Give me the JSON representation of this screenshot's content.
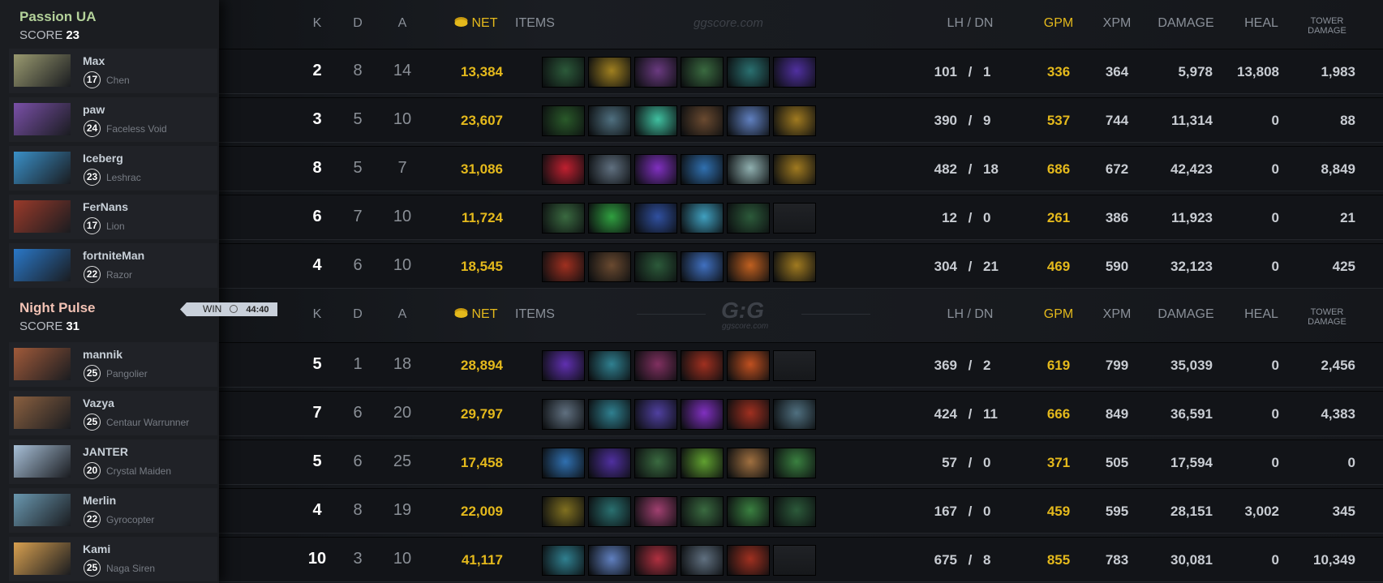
{
  "colors": {
    "gold": "#e4b91c",
    "team1": "#b4d29a",
    "team2": "#f2c2b4"
  },
  "watermark": "ggscore.com",
  "logo": {
    "text": "G:G",
    "sub": "ggscore.com"
  },
  "columns": {
    "k": "K",
    "d": "D",
    "a": "A",
    "net": "NET",
    "items": "ITEMS",
    "lhdn": "LH  /  DN",
    "gpm": "GPM",
    "xpm": "XPM",
    "damage": "DAMAGE",
    "heal": "HEAL",
    "tower1": "TOWER",
    "tower2": "DAMAGE"
  },
  "score_label": "SCORE",
  "result": {
    "label": "WIN",
    "icon": "clock-icon",
    "duration": "44:40"
  },
  "teams": [
    {
      "name": "Passion UA",
      "score": "23",
      "players": [
        {
          "name": "Max",
          "level": "17",
          "hero": "Chen",
          "k": "2",
          "d": "8",
          "a": "14",
          "net": "13,384",
          "lh": "101",
          "dn": "1",
          "gpm": "336",
          "xpm": "364",
          "damage": "5,978",
          "heal": "13,808",
          "tower": "1,983",
          "hero_color": "#9a9a70",
          "items": [
            "#2c5a3a",
            "#a08020",
            "#6a3a80",
            "#3a6a40",
            "#2a7070",
            "#5030a0"
          ]
        },
        {
          "name": "paw",
          "level": "24",
          "hero": "Faceless Void",
          "k": "3",
          "d": "5",
          "a": "10",
          "net": "23,607",
          "lh": "390",
          "dn": "9",
          "gpm": "537",
          "xpm": "744",
          "damage": "11,314",
          "heal": "0",
          "tower": "88",
          "hero_color": "#7a50a8",
          "items": [
            "#2a5a2a",
            "#507080",
            "#40c0a0",
            "#6a4a30",
            "#6080c0",
            "#a07a20"
          ]
        },
        {
          "name": "Iceberg",
          "level": "23",
          "hero": "Leshrac",
          "k": "8",
          "d": "5",
          "a": "7",
          "net": "31,086",
          "lh": "482",
          "dn": "18",
          "gpm": "686",
          "xpm": "672",
          "damage": "42,423",
          "heal": "0",
          "tower": "8,849",
          "hero_color": "#3a90c8",
          "items": [
            "#c02030",
            "#607080",
            "#8030c0",
            "#3070b0",
            "#90b0b0",
            "#a07a20"
          ]
        },
        {
          "name": "FerNans",
          "level": "17",
          "hero": "Lion",
          "k": "6",
          "d": "7",
          "a": "10",
          "net": "11,724",
          "lh": "12",
          "dn": "0",
          "gpm": "261",
          "xpm": "386",
          "damage": "11,923",
          "heal": "0",
          "tower": "21",
          "hero_color": "#9a3a2a",
          "items": [
            "#3a6a40",
            "#30a040",
            "#3050a0",
            "#40a0c0",
            "#2c5a3a",
            null
          ]
        },
        {
          "name": "fortniteMan",
          "level": "22",
          "hero": "Razor",
          "k": "4",
          "d": "6",
          "a": "10",
          "net": "18,545",
          "lh": "304",
          "dn": "21",
          "gpm": "469",
          "xpm": "590",
          "damage": "32,123",
          "heal": "0",
          "tower": "425",
          "hero_color": "#2a78c8",
          "items": [
            "#a03020",
            "#6a4a30",
            "#2c5a3a",
            "#4070c0",
            "#c06020",
            "#a07a20"
          ]
        }
      ]
    },
    {
      "name": "Night Pulse",
      "score": "31",
      "players": [
        {
          "name": "mannik",
          "level": "25",
          "hero": "Pangolier",
          "k": "5",
          "d": "1",
          "a": "18",
          "net": "28,894",
          "lh": "369",
          "dn": "2",
          "gpm": "619",
          "xpm": "799",
          "damage": "35,039",
          "heal": "0",
          "tower": "2,456",
          "hero_color": "#a05a3a",
          "items": [
            "#6030b0",
            "#308090",
            "#803060",
            "#a03020",
            "#c05020",
            null
          ]
        },
        {
          "name": "Vazya",
          "level": "25",
          "hero": "Centaur Warrunner",
          "k": "7",
          "d": "6",
          "a": "20",
          "net": "29,797",
          "lh": "424",
          "dn": "11",
          "gpm": "666",
          "xpm": "849",
          "damage": "36,591",
          "heal": "0",
          "tower": "4,383",
          "hero_color": "#8a6040",
          "items": [
            "#607080",
            "#308090",
            "#5040a0",
            "#8030c0",
            "#a03020",
            "#507080"
          ]
        },
        {
          "name": "JANTER",
          "level": "20",
          "hero": "Crystal Maiden",
          "k": "5",
          "d": "6",
          "a": "25",
          "net": "17,458",
          "lh": "57",
          "dn": "0",
          "gpm": "371",
          "xpm": "505",
          "damage": "17,594",
          "heal": "0",
          "tower": "0",
          "hero_color": "#a8c0d8",
          "items": [
            "#3070b0",
            "#5030a0",
            "#3a6a40",
            "#60a030",
            "#a07040",
            "#3a8040"
          ]
        },
        {
          "name": "Merlin",
          "level": "22",
          "hero": "Gyrocopter",
          "k": "4",
          "d": "8",
          "a": "19",
          "net": "22,009",
          "lh": "167",
          "dn": "0",
          "gpm": "459",
          "xpm": "595",
          "damage": "28,151",
          "heal": "3,002",
          "tower": "345",
          "hero_color": "#6a98b0",
          "items": [
            "#807020",
            "#2a7070",
            "#a04070",
            "#3a6a40",
            "#3a8040",
            "#2c5a3a"
          ]
        },
        {
          "name": "Kami",
          "level": "25",
          "hero": "Naga Siren",
          "k": "10",
          "d": "3",
          "a": "10",
          "net": "41,117",
          "lh": "675",
          "dn": "8",
          "gpm": "855",
          "xpm": "783",
          "damage": "30,081",
          "heal": "0",
          "tower": "10,349",
          "hero_color": "#d8a050",
          "items": [
            "#308090",
            "#6080c0",
            "#b03040",
            "#607080",
            "#a03020",
            null
          ]
        }
      ]
    }
  ]
}
